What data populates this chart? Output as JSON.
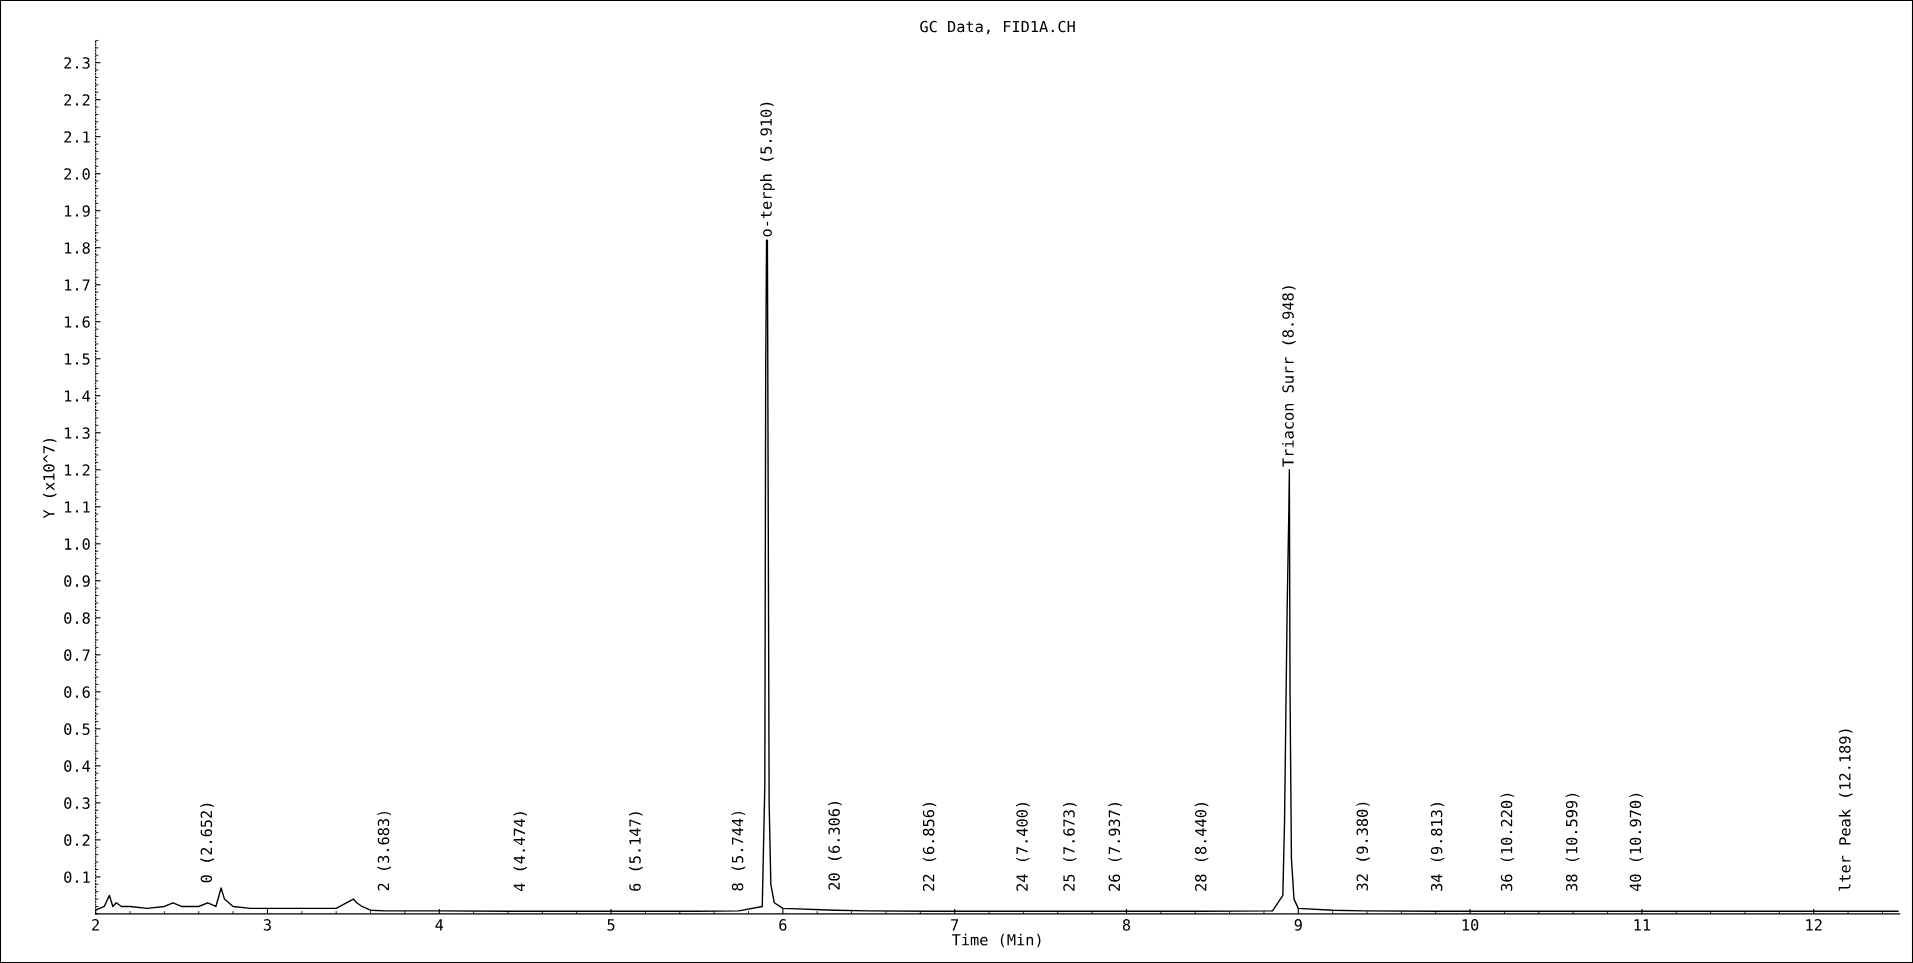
{
  "chart_data": {
    "type": "line",
    "title": "GC Data, FID1A.CH",
    "xlabel": "Time (Min)",
    "ylabel": "Y (x10^7)",
    "xlim": [
      2,
      12.5
    ],
    "xticks": [
      2,
      3,
      4,
      5,
      6,
      7,
      8,
      9,
      10,
      11,
      12
    ],
    "ylim": [
      0,
      2.36
    ],
    "yticks": [
      0.1,
      0.2,
      0.3,
      0.4,
      0.5,
      0.6,
      0.7,
      0.8,
      0.9,
      {
        "value": 1,
        "label": "1.0"
      },
      1.1,
      1.2,
      1.3,
      1.4,
      1.5,
      1.6,
      1.7,
      1.8,
      1.9,
      {
        "value": 2,
        "label": "2.0"
      },
      2.1,
      2.2,
      2.3
    ],
    "grid": false,
    "marker": "none",
    "line_style": "solid",
    "series": [
      {
        "color": "#000000",
        "x": [
          2.0,
          2.05,
          2.08,
          2.1,
          2.12,
          2.15,
          2.2,
          2.3,
          2.4,
          2.45,
          2.5,
          2.6,
          2.652,
          2.7,
          2.73,
          2.75,
          2.8,
          2.9,
          3.0,
          3.2,
          3.4,
          3.5,
          3.52,
          3.55,
          3.6,
          3.683,
          4.0,
          4.474,
          5.0,
          5.147,
          5.5,
          5.744,
          5.88,
          5.895,
          5.9,
          5.905,
          5.91,
          5.915,
          5.92,
          5.93,
          5.95,
          6.0,
          6.306,
          6.5,
          6.856,
          7.0,
          7.4,
          7.673,
          7.937,
          8.44,
          8.85,
          8.91,
          8.92,
          8.935,
          8.945,
          8.948,
          8.952,
          8.96,
          8.975,
          9.0,
          9.2,
          9.38,
          9.813,
          10.0,
          10.22,
          10.599,
          10.97,
          11.5,
          12.0,
          12.189,
          12.49
        ],
        "values": [
          0.01,
          0.02,
          0.05,
          0.02,
          0.03,
          0.02,
          0.02,
          0.015,
          0.02,
          0.03,
          0.02,
          0.02,
          0.03,
          0.02,
          0.07,
          0.04,
          0.02,
          0.015,
          0.015,
          0.015,
          0.015,
          0.04,
          0.03,
          0.02,
          0.01,
          0.008,
          0.008,
          0.007,
          0.007,
          0.007,
          0.007,
          0.008,
          0.02,
          0.35,
          1.46,
          1.82,
          1.82,
          1.05,
          0.3,
          0.08,
          0.03,
          0.015,
          0.01,
          0.008,
          0.007,
          0.007,
          0.007,
          0.007,
          0.007,
          0.007,
          0.008,
          0.05,
          0.25,
          0.82,
          1.09,
          1.2,
          0.6,
          0.15,
          0.04,
          0.015,
          0.01,
          0.008,
          0.007,
          0.007,
          0.007,
          0.007,
          0.007,
          0.007,
          0.007,
          0.007,
          0.007
        ]
      }
    ],
    "annotations": [
      {
        "text": "0 (2.652)",
        "x": 2.652,
        "y": 0.03
      },
      {
        "text": "2 (3.683)",
        "x": 3.683,
        "y": 0.008
      },
      {
        "text": "4 (4.474)",
        "x": 4.474,
        "y": 0.007
      },
      {
        "text": "6 (5.147)",
        "x": 5.147,
        "y": 0.007
      },
      {
        "text": "8 (5.744)",
        "x": 5.744,
        "y": 0.008
      },
      {
        "text": "o-terph (5.910)",
        "x": 5.91,
        "y": 1.82
      },
      {
        "text": "20 (6.306)",
        "x": 6.306,
        "y": 0.01
      },
      {
        "text": "22 (6.856)",
        "x": 6.856,
        "y": 0.007
      },
      {
        "text": "24 (7.400)",
        "x": 7.4,
        "y": 0.007
      },
      {
        "text": "25 (7.673)",
        "x": 7.673,
        "y": 0.007
      },
      {
        "text": "26 (7.937)",
        "x": 7.937,
        "y": 0.007
      },
      {
        "text": "28 (8.440)",
        "x": 8.44,
        "y": 0.007
      },
      {
        "text": "Triacon Surr (8.948)",
        "x": 8.948,
        "y": 1.2
      },
      {
        "text": "32 (9.380)",
        "x": 9.38,
        "y": 0.008
      },
      {
        "text": "34 (9.813)",
        "x": 9.813,
        "y": 0.007
      },
      {
        "text": "36 (10.220)",
        "x": 10.22,
        "y": 0.007
      },
      {
        "text": "38 (10.599)",
        "x": 10.599,
        "y": 0.007
      },
      {
        "text": "40 (10.970)",
        "x": 10.97,
        "y": 0.007
      },
      {
        "text": "lter Peak (12.189)",
        "x": 12.189,
        "y": 0.007
      }
    ]
  }
}
